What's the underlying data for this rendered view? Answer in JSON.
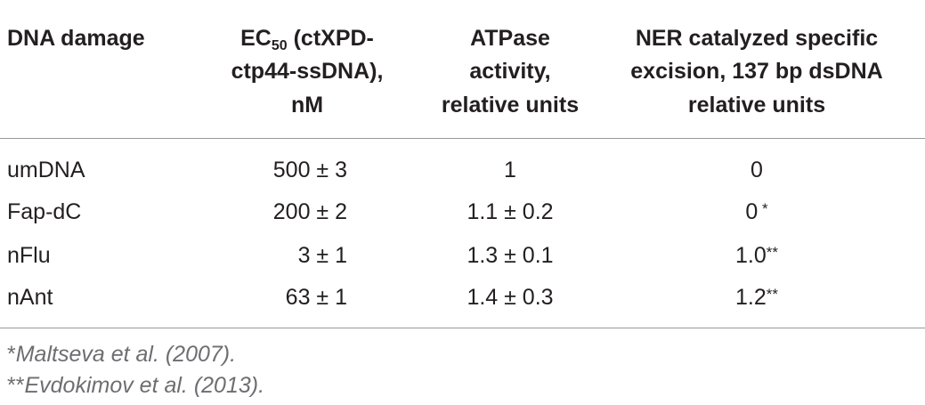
{
  "table": {
    "header": [
      {
        "lines": [
          "DNA damage"
        ]
      },
      {
        "lines": [
          {
            "text": "EC",
            "sub": "50",
            "after": " (ctXPD-"
          },
          "ctp44-ssDNA),",
          "nM"
        ]
      },
      {
        "lines": [
          "ATPase",
          "activity,",
          "relative units"
        ]
      },
      {
        "lines": [
          "NER catalyzed specific",
          "excision, 137 bp dsDNA",
          "relative units"
        ]
      }
    ],
    "rows": [
      [
        "umDNA",
        "500 ± 3",
        "1",
        {
          "text": "0"
        }
      ],
      [
        "Fap-dC",
        "200 ± 2",
        "1.1 ± 0.2",
        {
          "text": "0",
          "note": " *"
        }
      ],
      [
        "nFlu",
        "3 ± 1",
        "1.3 ± 0.1",
        {
          "text": "1.0",
          "note": "**"
        }
      ],
      [
        "nAnt",
        "63 ± 1",
        "1.4 ± 0.3",
        {
          "text": "1.2",
          "note": "**"
        }
      ]
    ],
    "footnotes": [
      {
        "mark": "*",
        "text": "Maltseva et al. (2007)."
      },
      {
        "mark": "**",
        "text": "Evdokimov et al. (2013)."
      }
    ]
  }
}
